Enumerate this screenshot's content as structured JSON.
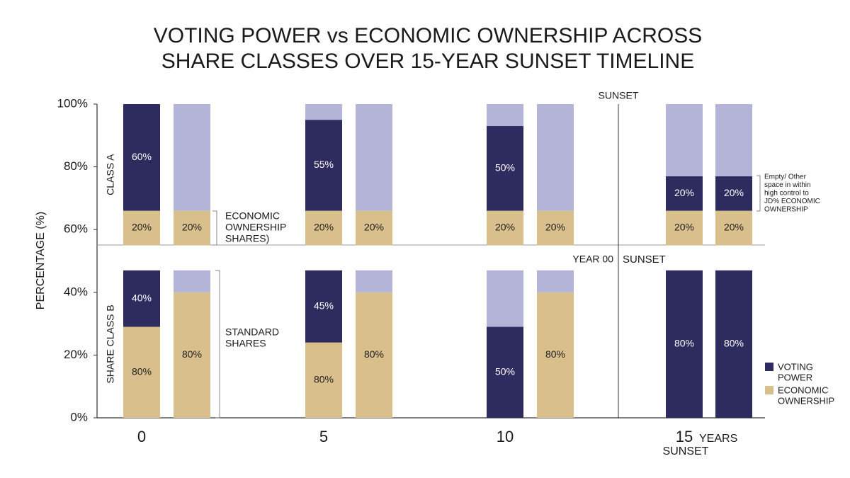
{
  "chart_data": {
    "type": "stacked_bar",
    "title": [
      "VOTING POWER vs ECONOMIC OWNERSHIP ACROSS",
      "SHARE CLASSES OVER 15-YEAR SUNSET TIMELINE"
    ],
    "ylabel": "PERCENTAGE (%)",
    "ylim": [
      0,
      100
    ],
    "yticks": [
      {
        "value": 0,
        "label": "0%"
      },
      {
        "value": 20,
        "label": "20%"
      },
      {
        "value": 40,
        "label": "40%"
      },
      {
        "value": 60,
        "label": "60%"
      },
      {
        "value": 80,
        "label": "80%"
      },
      {
        "value": 100,
        "label": "100%"
      }
    ],
    "categories": [
      "0",
      "5",
      "10",
      "15"
    ],
    "x_unit": "YEARS",
    "series": [
      {
        "name": [
          "VOTING",
          "POWER"
        ],
        "color": "#2e2b5f"
      },
      {
        "name": [
          "ECONOMIC",
          "OWNERSHIP"
        ],
        "color": "#d9bf8c"
      },
      {
        "color": "#b4b4d9"
      }
    ],
    "panels": [
      {
        "label": "CLASS A",
        "base": 55,
        "bars": [
          [
            {
              "series": 1,
              "value": 11,
              "label": "20%"
            },
            {
              "series": 0,
              "value": 34,
              "label": "60%"
            }
          ],
          [
            {
              "series": 1,
              "value": 11,
              "label": "20%"
            },
            {
              "series": 2,
              "value": 34
            }
          ],
          [
            {
              "series": 1,
              "value": 11,
              "label": "20%"
            },
            {
              "series": 0,
              "value": 29,
              "label": "55%"
            },
            {
              "series": 2,
              "value": 5
            }
          ],
          [
            {
              "series": 1,
              "value": 11,
              "label": "20%"
            },
            {
              "series": 2,
              "value": 34
            }
          ],
          [
            {
              "series": 1,
              "value": 11,
              "label": "20%"
            },
            {
              "series": 0,
              "value": 27,
              "label": "50%"
            },
            {
              "series": 2,
              "value": 7
            }
          ],
          [
            {
              "series": 1,
              "value": 11,
              "label": "20%"
            },
            {
              "series": 2,
              "value": 34
            }
          ],
          [
            {
              "series": 1,
              "value": 11,
              "label": "20%"
            },
            {
              "series": 0,
              "value": 11,
              "label": "20%"
            },
            {
              "series": 2,
              "value": 23
            }
          ],
          [
            {
              "series": 1,
              "value": 11,
              "label": "20%"
            },
            {
              "series": 0,
              "value": 11,
              "label": "20%"
            },
            {
              "series": 2,
              "value": 23
            }
          ]
        ]
      },
      {
        "label": "SHARE CLASS B",
        "base": 0,
        "bars": [
          [
            {
              "series": 1,
              "value": 29,
              "label": "80%"
            },
            {
              "series": 0,
              "value": 18,
              "label": "40%"
            }
          ],
          [
            {
              "series": 1,
              "value": 40,
              "label": "80%"
            },
            {
              "series": 2,
              "value": 7
            }
          ],
          [
            {
              "series": 1,
              "value": 24,
              "label": "80%"
            },
            {
              "series": 0,
              "value": 23,
              "label": "45%"
            }
          ],
          [
            {
              "series": 1,
              "value": 40,
              "label": "80%"
            },
            {
              "series": 2,
              "value": 7
            }
          ],
          [
            {
              "series": 0,
              "value": 29,
              "label": "50%"
            },
            {
              "series": 2,
              "value": 18
            }
          ],
          [
            {
              "series": 1,
              "value": 40,
              "label": "80%"
            },
            {
              "series": 2,
              "value": 7
            }
          ],
          [
            {
              "series": 0,
              "value": 47,
              "label": "80%"
            }
          ],
          [
            {
              "series": 0,
              "value": 47,
              "label": "80%"
            }
          ]
        ]
      }
    ],
    "sunset_top": "SUNSET",
    "year_marker": "YEAR 00",
    "sunset_mid": "SUNSET",
    "sunset_bottom": "SUNSET",
    "notes": [
      [
        "ECONOMIC",
        "OWNERSHIP",
        "SHARES)"
      ],
      [
        "STANDARD",
        "SHARES"
      ],
      [
        "Empty/ Other",
        "space in within",
        "high control to",
        "JD% ECONOMIC",
        "OWNERSHIP"
      ]
    ]
  }
}
